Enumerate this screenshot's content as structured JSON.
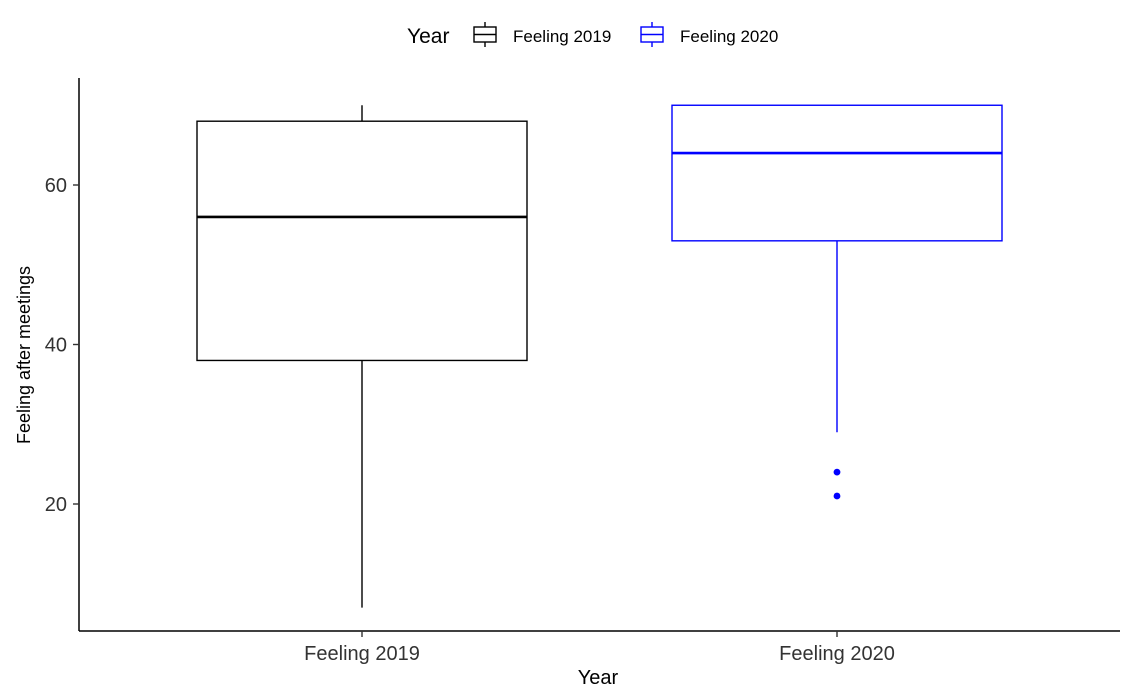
{
  "chart_data": {
    "type": "boxplot",
    "title": "",
    "xlabel": "Year",
    "ylabel": "Feeling after meetings",
    "categories": [
      "Feeling 2019",
      "Feeling 2020"
    ],
    "ylim": [
      4,
      73
    ],
    "yticks": [
      20,
      40,
      60
    ],
    "grid": false,
    "legend": {
      "title": "Year",
      "position": "top",
      "entries": [
        {
          "label": "Feeling 2019",
          "color": "#000000"
        },
        {
          "label": "Feeling 2020",
          "color": "#0000FF"
        }
      ]
    },
    "series": [
      {
        "name": "Feeling 2019",
        "color": "#000000",
        "whisker_low": 7,
        "q1": 38,
        "median": 56,
        "q3": 68,
        "whisker_high": 70,
        "outliers": []
      },
      {
        "name": "Feeling 2020",
        "color": "#0000FF",
        "whisker_low": 29,
        "q1": 53,
        "median": 64,
        "q3": 70,
        "whisker_high": 70,
        "outliers": [
          24,
          21
        ]
      }
    ]
  }
}
